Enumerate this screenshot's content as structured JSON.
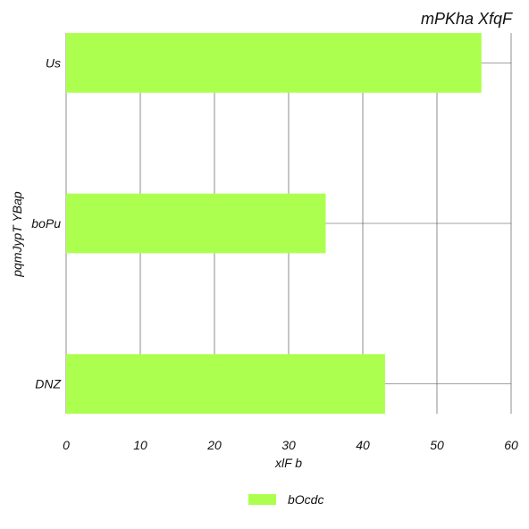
{
  "chart_data": {
    "type": "bar",
    "orientation": "horizontal",
    "title": "mPKha XfqF",
    "xlabel": "xlF b",
    "ylabel": "pqmJypT YBap",
    "categories": [
      "Us",
      "boPu",
      "DNZ"
    ],
    "series": [
      {
        "name": "bOcdc",
        "values": [
          56,
          35,
          43
        ],
        "color": "#adff4f"
      }
    ],
    "xlim": [
      0,
      60
    ],
    "xticks": [
      0,
      10,
      20,
      30,
      40,
      50,
      60
    ],
    "grid": true,
    "legend": "bottom-center"
  }
}
